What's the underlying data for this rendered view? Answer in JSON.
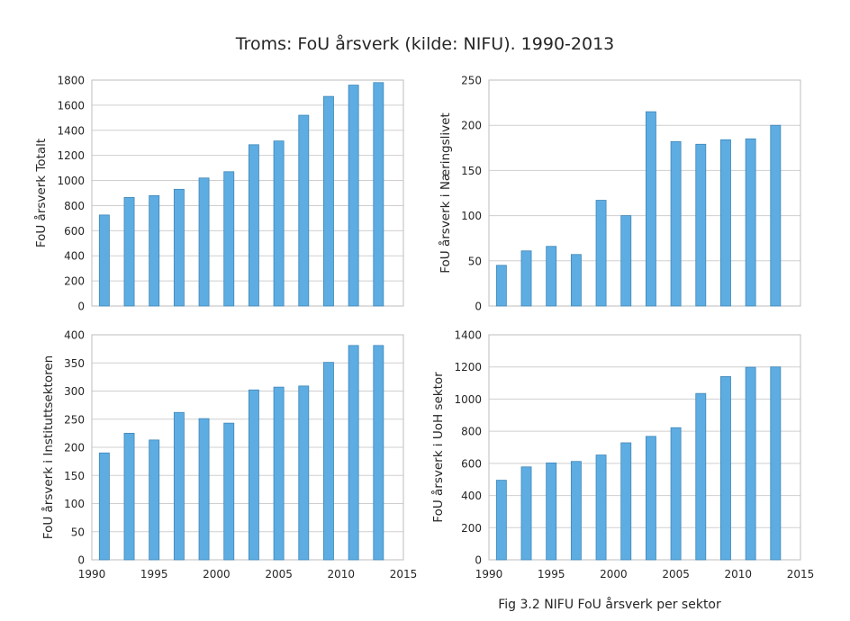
{
  "figure": {
    "title": "Troms: FoU årsverk (kilde: NIFU). 1990-2013",
    "caption": "Fig 3.2 NIFU FoU årsverk per sektor"
  },
  "colors": {
    "bar": "#5DADE2",
    "bar_edge": "#3F86B8",
    "grid": "#CFCFCF",
    "axis": "#BDBDBD"
  },
  "chart_data": [
    {
      "type": "bar",
      "ylabel": "FoU årsverk Totalt",
      "x": [
        1991,
        1993,
        1995,
        1997,
        1999,
        2001,
        2003,
        2005,
        2007,
        2009,
        2011,
        2013
      ],
      "values": [
        725,
        865,
        880,
        930,
        1020,
        1070,
        1285,
        1315,
        1520,
        1670,
        1760,
        1780
      ],
      "xlim": [
        1990,
        2015
      ],
      "ylim": [
        0,
        1800
      ],
      "yticks": [
        0,
        200,
        400,
        600,
        800,
        1000,
        1200,
        1400,
        1600,
        1800
      ],
      "xticks": [],
      "grid": true
    },
    {
      "type": "bar",
      "ylabel": "FoU årsverk i Næringslivet",
      "x": [
        1991,
        1993,
        1995,
        1997,
        1999,
        2001,
        2003,
        2005,
        2007,
        2009,
        2011,
        2013
      ],
      "values": [
        45,
        61,
        66,
        57,
        117,
        100,
        215,
        182,
        179,
        184,
        185,
        200
      ],
      "xlim": [
        1990,
        2015
      ],
      "ylim": [
        0,
        250
      ],
      "yticks": [
        0,
        50,
        100,
        150,
        200,
        250
      ],
      "xticks": [],
      "grid": true
    },
    {
      "type": "bar",
      "ylabel": "FoU årsverk i Instituttsektoren",
      "x": [
        1991,
        1993,
        1995,
        1997,
        1999,
        2001,
        2003,
        2005,
        2007,
        2009,
        2011,
        2013
      ],
      "values": [
        190,
        225,
        213,
        262,
        251,
        243,
        302,
        307,
        309,
        351,
        381,
        381
      ],
      "xlim": [
        1990,
        2015
      ],
      "ylim": [
        0,
        400
      ],
      "yticks": [
        0,
        50,
        100,
        150,
        200,
        250,
        300,
        350,
        400
      ],
      "xticks": [
        1990,
        1995,
        2000,
        2005,
        2010,
        2015
      ],
      "grid": true
    },
    {
      "type": "bar",
      "ylabel": "FoU årsverk i UoH sektor",
      "x": [
        1991,
        1993,
        1995,
        1997,
        1999,
        2001,
        2003,
        2005,
        2007,
        2009,
        2011,
        2013
      ],
      "values": [
        495,
        578,
        603,
        612,
        652,
        728,
        768,
        822,
        1035,
        1140,
        1198,
        1200
      ],
      "xlim": [
        1990,
        2015
      ],
      "ylim": [
        0,
        1400
      ],
      "yticks": [
        0,
        200,
        400,
        600,
        800,
        1000,
        1200,
        1400
      ],
      "xticks": [
        1990,
        1995,
        2000,
        2005,
        2010,
        2015
      ],
      "grid": true
    }
  ]
}
